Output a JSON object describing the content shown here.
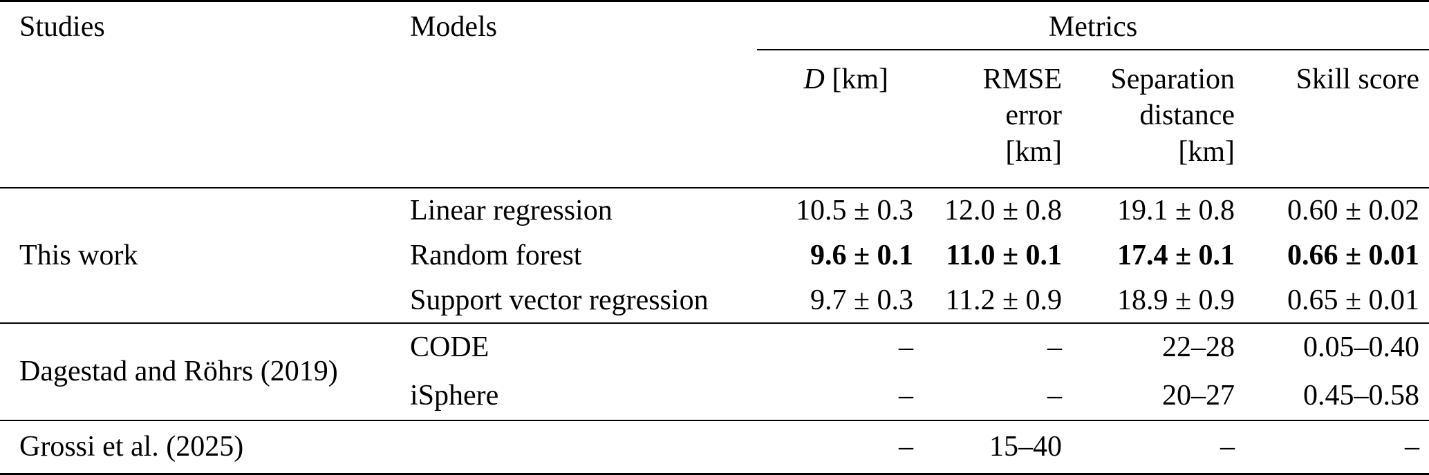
{
  "page": {
    "background_color": "#ffffff",
    "text_color": "#000000"
  },
  "table": {
    "columns": {
      "studies": "Studies",
      "models": "Models",
      "metrics_group": "Metrics",
      "metric_d_symbol": "D",
      "metric_d_unit": "[km]",
      "metric_rmse": "RMSE\nerror\n[km]",
      "metric_separation": "Separation\ndistance\n[km]",
      "metric_skill": "Skill score"
    },
    "sections": [
      {
        "study": "This work",
        "rows": [
          {
            "model": "Linear regression",
            "d_km": "10.5 ± 0.3",
            "rmse_error_km": "12.0 ± 0.8",
            "separation_distance_km": "19.1 ± 0.8",
            "skill_score": "0.60 ± 0.02",
            "emphasis": false
          },
          {
            "model": "Random forest",
            "d_km": "9.6 ± 0.1",
            "rmse_error_km": "11.0 ± 0.1",
            "separation_distance_km": "17.4 ± 0.1",
            "skill_score": "0.66 ± 0.01",
            "emphasis": true
          },
          {
            "model": "Support vector regression",
            "d_km": "9.7 ± 0.3",
            "rmse_error_km": "11.2 ± 0.9",
            "separation_distance_km": "18.9 ± 0.9",
            "skill_score": "0.65 ± 0.01",
            "emphasis": false
          }
        ]
      },
      {
        "study": "Dagestad and Röhrs (2019)",
        "rows": [
          {
            "model": "CODE",
            "d_km": "–",
            "rmse_error_km": "–",
            "separation_distance_km": "22–28",
            "skill_score": "0.05–0.40",
            "emphasis": false
          },
          {
            "model": "iSphere",
            "d_km": "–",
            "rmse_error_km": "–",
            "separation_distance_km": "20–27",
            "skill_score": "0.45–0.58",
            "emphasis": false
          }
        ]
      },
      {
        "study": "Grossi et al. (2025)",
        "rows": [
          {
            "model": "",
            "d_km": "–",
            "rmse_error_km": "15–40",
            "separation_distance_km": "–",
            "skill_score": "–",
            "emphasis": false
          }
        ]
      }
    ]
  }
}
